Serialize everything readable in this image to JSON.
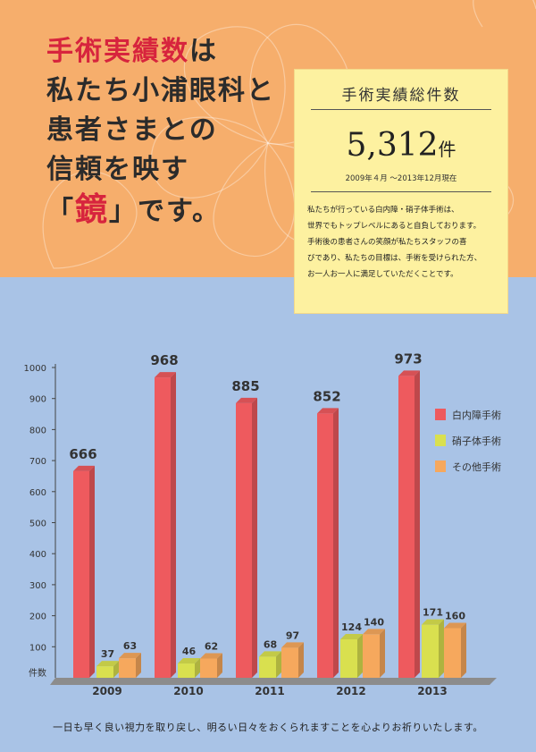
{
  "headline": {
    "line1_red": "手術実績数",
    "line1_rest": "は",
    "line2": "私たち小浦眼科と",
    "line3": "患者さまとの",
    "line4": "信頼を映す",
    "line5_open": "「",
    "line5_big": "鏡",
    "line5_close": "」",
    "line5_rest": "です。"
  },
  "summary": {
    "title": "手術実績総件数",
    "total": "5,312",
    "unit": "件",
    "period": "2009年４月 ～2013年12月現在",
    "body": [
      "私たちが行っている白内障・硝子体手術は、",
      "世界でもトップレベルにあると自負しております。",
      "手術後の患者さんの笑顔が私たちスタッフの喜",
      "びであり、私たちの目標は、手術を受けられた方、",
      "お一人お一人に満足していただくことです。"
    ]
  },
  "footer": "一日も早く良い視力を取り戻し、明るい日々をおくられますことを心よりお祈りいたします。",
  "colors": {
    "cataract": "#ee5a5e",
    "vitreous": "#d9e04f",
    "other": "#f6a85d",
    "top_bg": "#f6ae6c",
    "bottom_bg": "#a9c3e6",
    "box_bg": "#fdf1a0"
  },
  "chart_data": {
    "type": "bar",
    "categories": [
      "2009",
      "2010",
      "2011",
      "2012",
      "2013"
    ],
    "series": [
      {
        "name": "白内障手術",
        "values": [
          666,
          968,
          885,
          852,
          973
        ]
      },
      {
        "name": "硝子体手術",
        "values": [
          37,
          46,
          68,
          124,
          171
        ]
      },
      {
        "name": "その他手術",
        "values": [
          63,
          62,
          97,
          140,
          160
        ]
      }
    ],
    "yticks": [
      100,
      200,
      300,
      400,
      500,
      600,
      700,
      800,
      900,
      1000
    ],
    "ylabel": "件数",
    "ylim": [
      0,
      1000
    ],
    "legend_position": "right",
    "grid": false
  }
}
